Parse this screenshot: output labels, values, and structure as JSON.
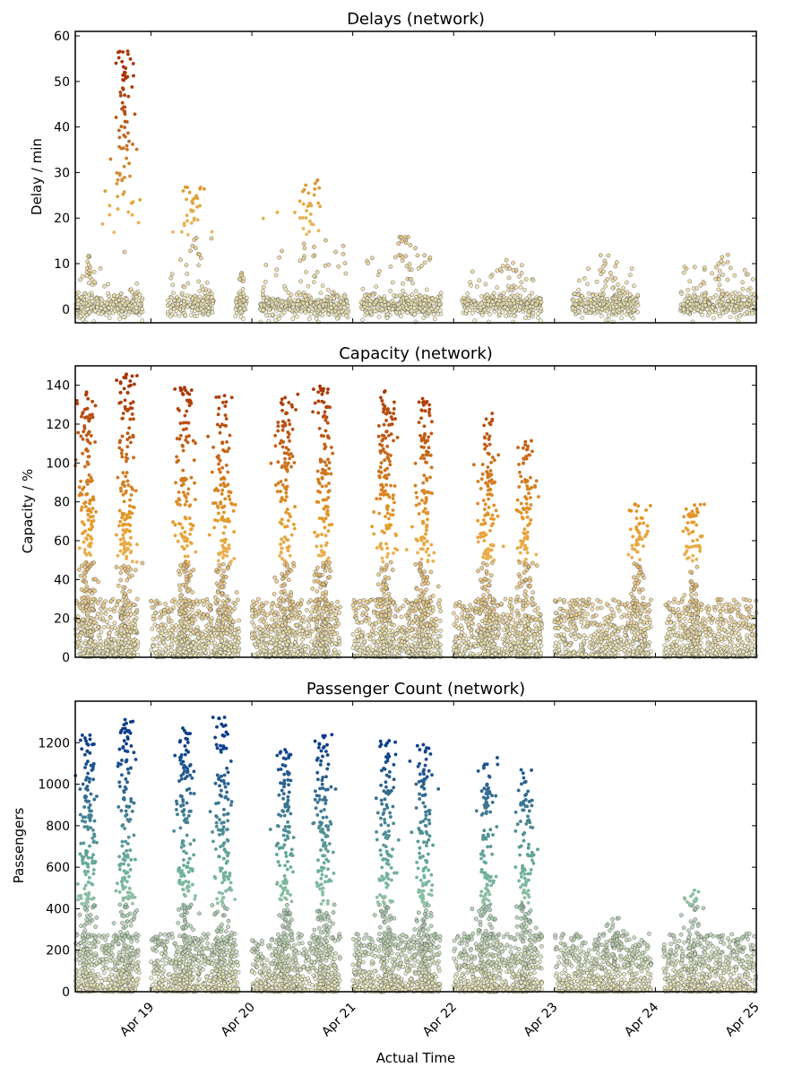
{
  "figure": {
    "xlabel": "Actual Time"
  },
  "chart_data": [
    {
      "type": "scatter",
      "title": "Delays (network)",
      "ylabel": "Delay / min",
      "xlim": [
        "Apr 18 06:00",
        "Apr 25 00:00"
      ],
      "ylim": [
        -3,
        61
      ],
      "yticks": [
        0,
        10,
        20,
        30,
        40,
        50,
        60
      ],
      "colormap": [
        "#f5f0c0",
        "#e1a53d",
        "#a83508"
      ],
      "bands": [
        {
          "start": "Apr 18 06:00",
          "end": "Apr 18 12:00",
          "peak": 12
        },
        {
          "start": "Apr 18 12:00",
          "end": "Apr 18 22:00",
          "peak": 57
        },
        {
          "start": "Apr 19 04:00",
          "end": "Apr 19 15:00",
          "peak": 27
        },
        {
          "start": "Apr 19 20:00",
          "end": "Apr 19 23:00",
          "peak": 8
        },
        {
          "start": "Apr 20 02:00",
          "end": "Apr 20 23:00",
          "peak": 29
        },
        {
          "start": "Apr 21 02:00",
          "end": "Apr 21 21:00",
          "peak": 16
        },
        {
          "start": "Apr 22 02:00",
          "end": "Apr 22 21:00",
          "peak": 11
        },
        {
          "start": "Apr 23 04:00",
          "end": "Apr 23 20:00",
          "peak": 12
        },
        {
          "start": "Apr 24 06:00",
          "end": "Apr 25 00:00",
          "peak": 12
        }
      ]
    },
    {
      "type": "scatter",
      "title": "Capacity (network)",
      "ylabel": "Capacity / %",
      "xlim": [
        "Apr 18 06:00",
        "Apr 25 00:00"
      ],
      "ylim": [
        0,
        150
      ],
      "yticks": [
        0,
        20,
        40,
        60,
        80,
        100,
        120,
        140
      ],
      "colormap": [
        "#f5f0c0",
        "#e59a2a",
        "#a83508"
      ],
      "bands": [
        {
          "start": "Apr 18 06:00",
          "end": "Apr 18 21:00",
          "peaks": [
            {
              "t": "Apr 18 09:00",
              "v": 137
            },
            {
              "t": "Apr 18 18:00",
              "v": 146
            }
          ]
        },
        {
          "start": "Apr 19 00:00",
          "end": "Apr 19 21:00",
          "peaks": [
            {
              "t": "Apr 19 08:00",
              "v": 140
            },
            {
              "t": "Apr 19 17:00",
              "v": 135
            }
          ]
        },
        {
          "start": "Apr 20 00:00",
          "end": "Apr 20 21:00",
          "peaks": [
            {
              "t": "Apr 20 08:00",
              "v": 136
            },
            {
              "t": "Apr 20 17:00",
              "v": 140
            }
          ]
        },
        {
          "start": "Apr 21 00:00",
          "end": "Apr 21 21:00",
          "peaks": [
            {
              "t": "Apr 21 08:00",
              "v": 139
            },
            {
              "t": "Apr 21 17:00",
              "v": 134
            }
          ]
        },
        {
          "start": "Apr 22 00:00",
          "end": "Apr 22 21:00",
          "peaks": [
            {
              "t": "Apr 22 08:00",
              "v": 126
            },
            {
              "t": "Apr 22 17:00",
              "v": 113
            }
          ]
        },
        {
          "start": "Apr 23 00:00",
          "end": "Apr 23 23:00",
          "peaks": [
            {
              "t": "Apr 23 20:00",
              "v": 81
            }
          ]
        },
        {
          "start": "Apr 24 02:00",
          "end": "Apr 25 00:00",
          "peaks": [
            {
              "t": "Apr 24 09:00",
              "v": 79
            }
          ]
        }
      ]
    },
    {
      "type": "scatter",
      "title": "Passenger Count (network)",
      "ylabel": "Passengers",
      "xlim": [
        "Apr 18 06:00",
        "Apr 25 00:00"
      ],
      "ylim": [
        0,
        1400
      ],
      "yticks": [
        0,
        200,
        400,
        600,
        800,
        1000,
        1200
      ],
      "xticks": [
        "Apr 19",
        "Apr 20",
        "Apr 21",
        "Apr 22",
        "Apr 23",
        "Apr 24",
        "Apr 25"
      ],
      "colormap": [
        "#f5f0c0",
        "#6aae9a",
        "#0b3d8a"
      ],
      "bands": [
        {
          "start": "Apr 18 06:00",
          "end": "Apr 18 21:00",
          "peaks": [
            {
              "t": "Apr 18 09:00",
              "v": 1240
            },
            {
              "t": "Apr 18 18:00",
              "v": 1315
            }
          ]
        },
        {
          "start": "Apr 19 00:00",
          "end": "Apr 19 21:00",
          "peaks": [
            {
              "t": "Apr 19 08:00",
              "v": 1275
            },
            {
              "t": "Apr 19 17:00",
              "v": 1330
            }
          ]
        },
        {
          "start": "Apr 20 00:00",
          "end": "Apr 20 21:00",
          "peaks": [
            {
              "t": "Apr 20 08:00",
              "v": 1175
            },
            {
              "t": "Apr 20 17:00",
              "v": 1240
            }
          ]
        },
        {
          "start": "Apr 21 00:00",
          "end": "Apr 21 21:00",
          "peaks": [
            {
              "t": "Apr 21 08:00",
              "v": 1230
            },
            {
              "t": "Apr 21 17:00",
              "v": 1195
            }
          ]
        },
        {
          "start": "Apr 22 00:00",
          "end": "Apr 22 21:00",
          "peaks": [
            {
              "t": "Apr 22 08:00",
              "v": 1135
            },
            {
              "t": "Apr 22 17:00",
              "v": 1080
            }
          ]
        },
        {
          "start": "Apr 23 00:00",
          "end": "Apr 23 23:00",
          "peaks": [
            {
              "t": "Apr 23 14:00",
              "v": 360
            }
          ]
        },
        {
          "start": "Apr 24 02:00",
          "end": "Apr 25 00:00",
          "peaks": [
            {
              "t": "Apr 24 09:00",
              "v": 490
            }
          ]
        }
      ]
    }
  ]
}
